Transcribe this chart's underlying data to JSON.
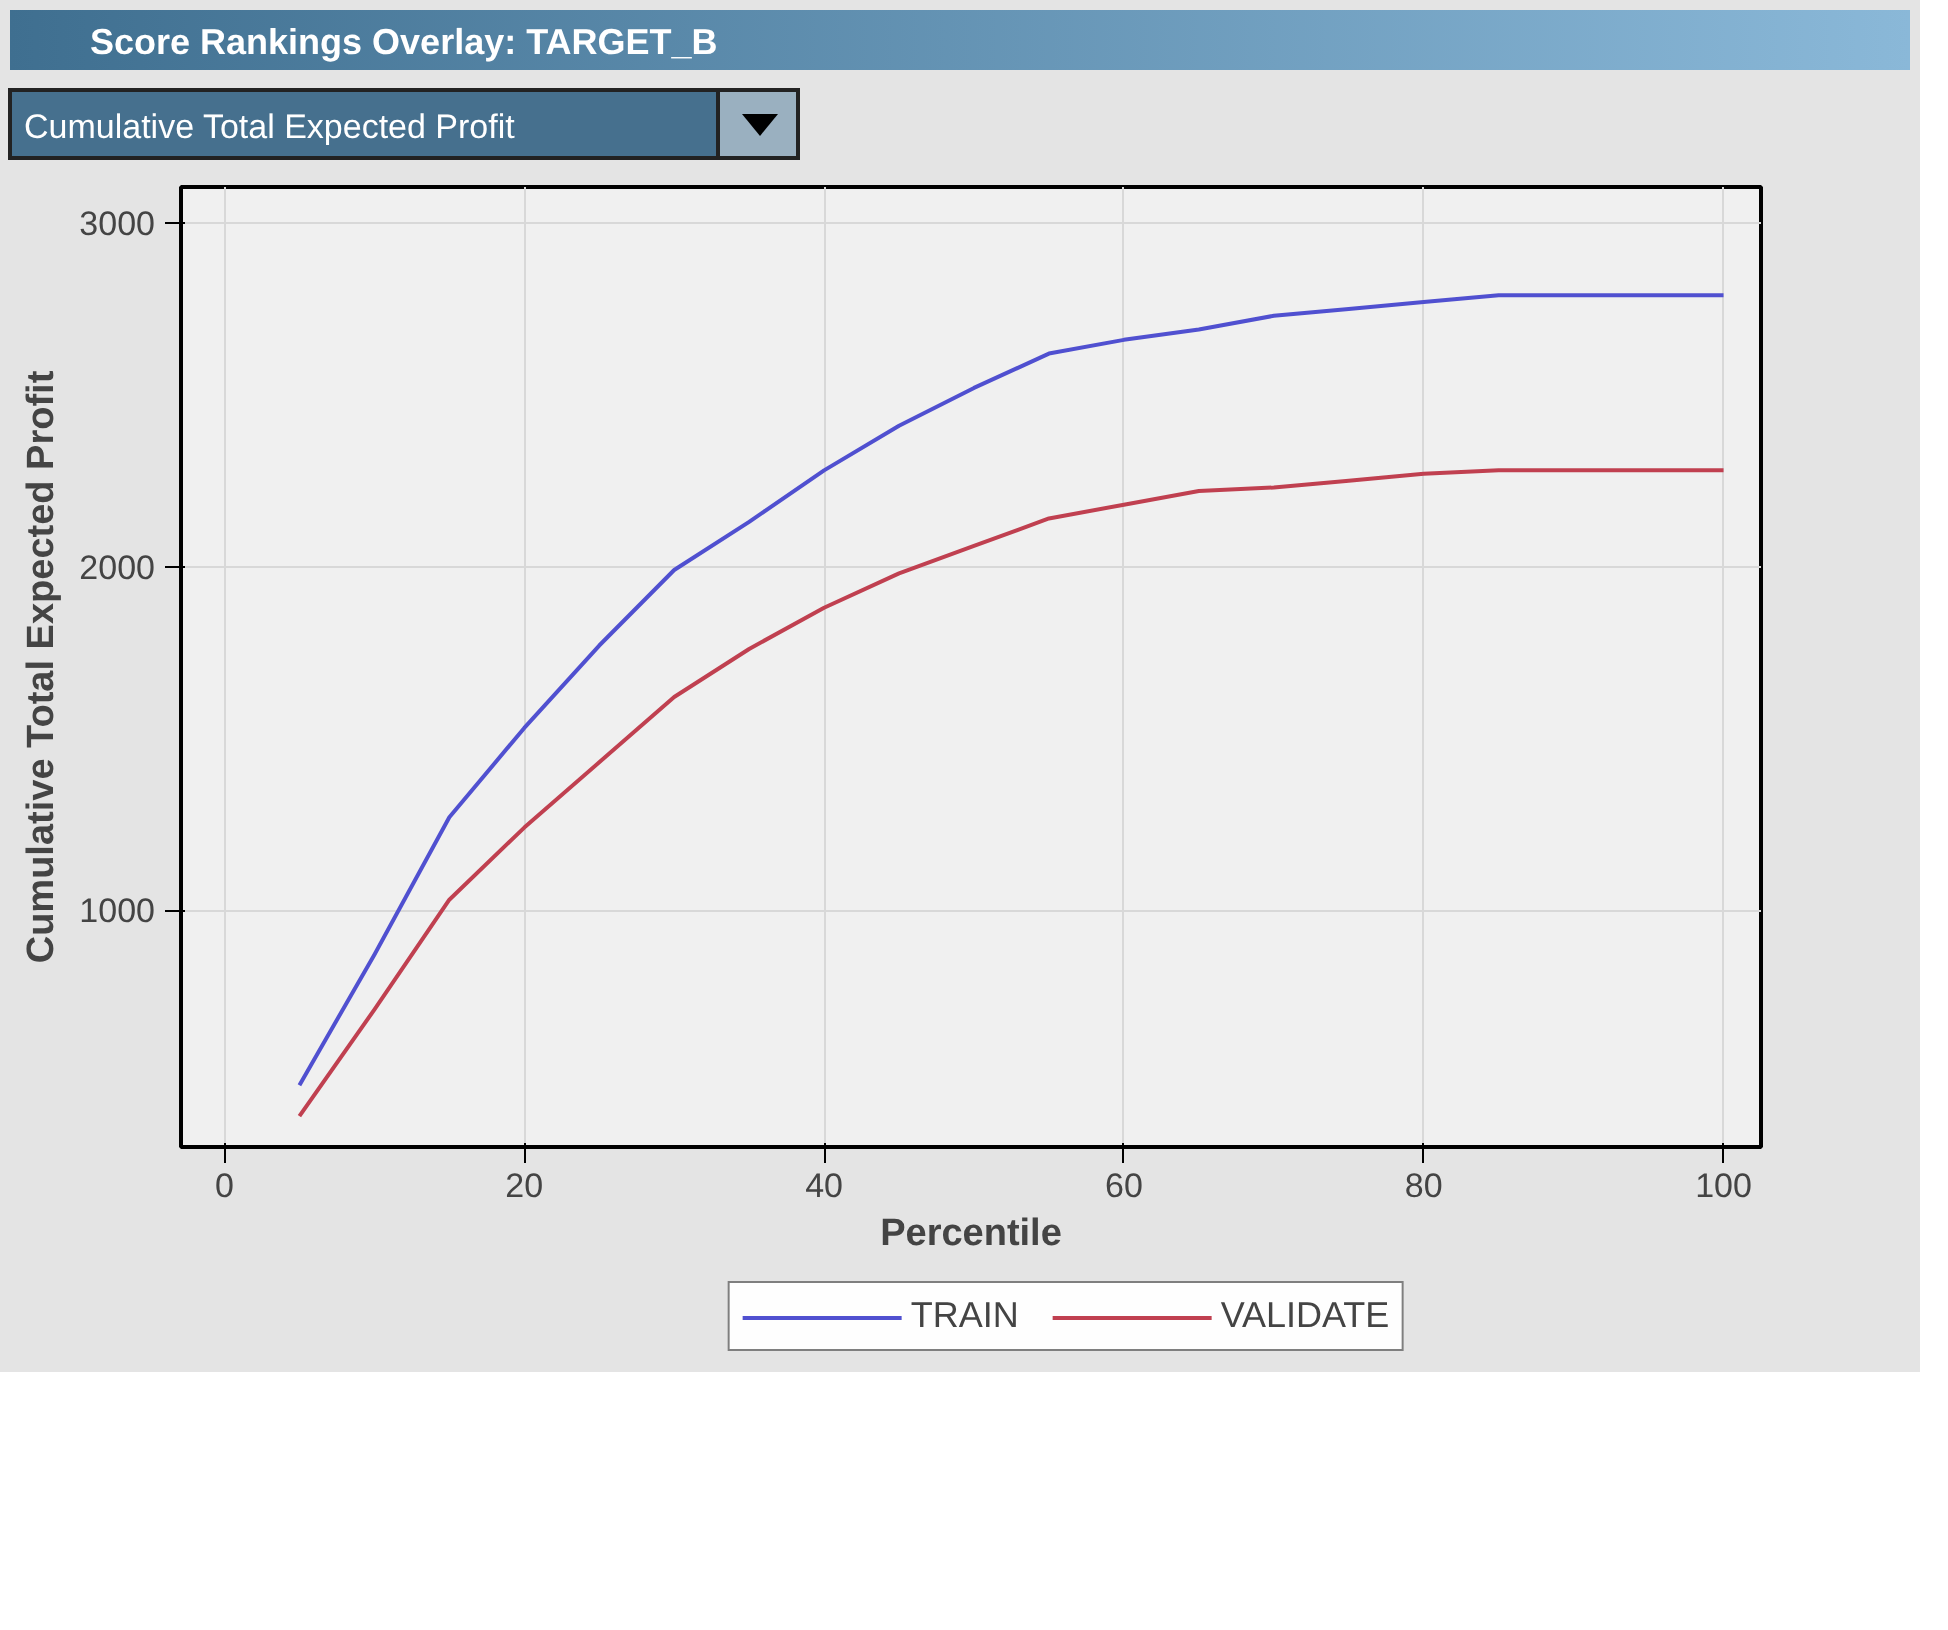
{
  "chart_data": {
    "type": "line",
    "title": "Score Rankings Overlay: TARGET_B",
    "subtitle": "Cumulative Total Expected Profit",
    "xlabel": "Percentile",
    "ylabel": "Cumulative Total Expected Profit",
    "x": [
      5,
      10,
      15,
      20,
      25,
      30,
      35,
      40,
      45,
      50,
      55,
      60,
      65,
      70,
      75,
      80,
      85,
      90,
      95,
      100
    ],
    "series": [
      {
        "name": "TRAIN",
        "color": "#5050d0",
        "values": [
          490,
          870,
          1270,
          1530,
          1770,
          1990,
          2130,
          2280,
          2410,
          2520,
          2620,
          2660,
          2690,
          2730,
          2750,
          2770,
          2790,
          2790,
          2790,
          2790
        ]
      },
      {
        "name": "VALIDATE",
        "color": "#c04050",
        "values": [
          400,
          710,
          1030,
          1240,
          1430,
          1620,
          1760,
          1880,
          1980,
          2060,
          2140,
          2180,
          2220,
          2230,
          2250,
          2270,
          2280,
          2280,
          2280,
          2280
        ]
      }
    ],
    "xlim": [
      -2.9,
      102.5
    ],
    "ylim": [
      310,
      3105
    ],
    "xticks": [
      0,
      20,
      40,
      60,
      80,
      100
    ],
    "yticks": [
      1000,
      2000,
      3000
    ],
    "grid": true,
    "legend": "bottom",
    "line_style": "solid"
  }
}
